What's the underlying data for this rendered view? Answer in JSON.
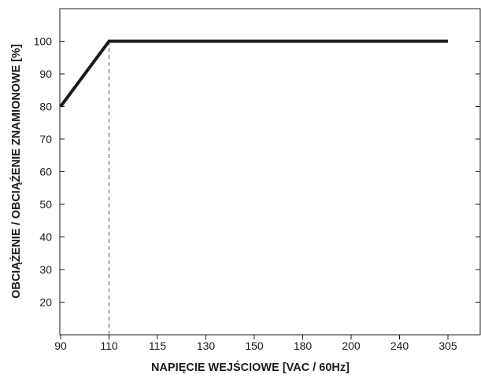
{
  "chart_data": {
    "type": "line",
    "title": "",
    "xlabel": "NAPIĘCIE WEJŚCIOWE [VAC / 60Hz]",
    "ylabel": "OBCIĄŻENIE / OBCIĄŻENIE ZNAMIONOWE [%]",
    "x_scale": "categorical",
    "categories": [
      "90",
      "110",
      "115",
      "130",
      "150",
      "180",
      "200",
      "240",
      "305"
    ],
    "y_ticks": [
      20,
      30,
      40,
      50,
      60,
      70,
      80,
      90,
      100
    ],
    "ylim": [
      10,
      110
    ],
    "grid": false,
    "series": [
      {
        "x": [
          "90",
          "110",
          "305"
        ],
        "values": [
          80,
          100,
          100
        ],
        "color": "#1a1a1a"
      }
    ],
    "reference_lines": [
      {
        "orientation": "vertical",
        "x": "110",
        "y_from": 10,
        "y_to": 100,
        "style": "dashed",
        "color": "#555555"
      }
    ]
  }
}
